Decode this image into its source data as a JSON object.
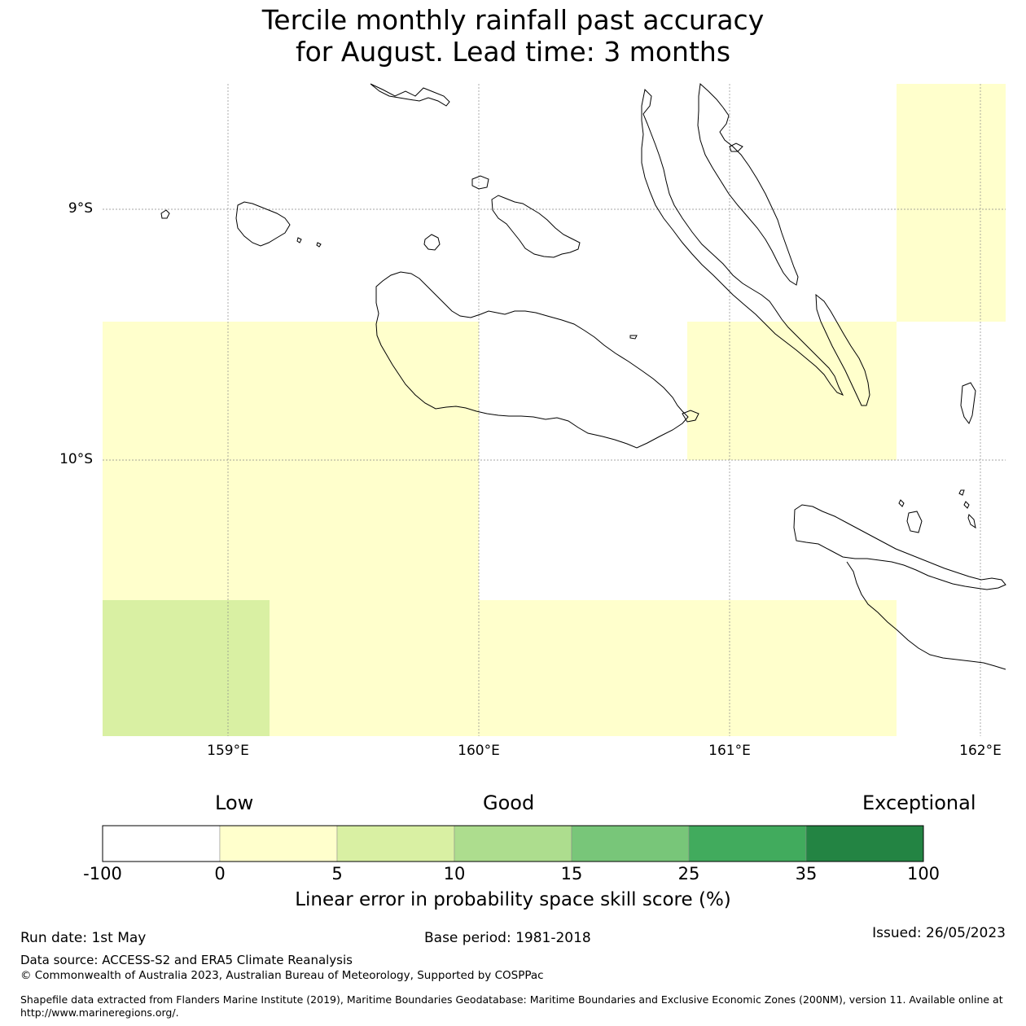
{
  "title": {
    "line1": "Tercile monthly rainfall past accuracy",
    "line2": "for August. Lead time: 3 months"
  },
  "map": {
    "lat_labels": [
      "9°S",
      "10°S"
    ],
    "lon_labels": [
      "159°E",
      "160°E",
      "161°E",
      "162°E"
    ],
    "colors": {
      "cat_0_5": "#ffffcc",
      "cat_5_10": "#d9f0a3",
      "land_outline": "#000000",
      "gridline": "#888888"
    }
  },
  "colorbar": {
    "categories": [
      "Low",
      "Good",
      "Exceptional"
    ],
    "ticks": [
      "-100",
      "0",
      "5",
      "10",
      "15",
      "25",
      "35",
      "100"
    ],
    "colors": [
      "#ffffff",
      "#ffffcc",
      "#d9f0a3",
      "#addd8e",
      "#78c679",
      "#41ab5d",
      "#238443"
    ],
    "label": "Linear error in probability space skill score (%)"
  },
  "footer": {
    "run_date": "Run date: 1st May",
    "base_period": "Base period: 1981-2018",
    "issued": "Issued: 26/05/2023",
    "data_source": "Data source: ACCESS-S2 and ERA5 Climate Reanalysis",
    "copyright": "© Commonwealth of Australia 2023, Australian Bureau of Meteorology, Supported by COSPPac",
    "shapefile_line1": "Shapefile data extracted from Flanders Marine Institute (2019), Maritime Boundaries Geodatabase: Maritime Boundaries and Exclusive Economic Zones (200NM), version 11. Available online at",
    "shapefile_line2": "http://www.marineregions.org/."
  }
}
